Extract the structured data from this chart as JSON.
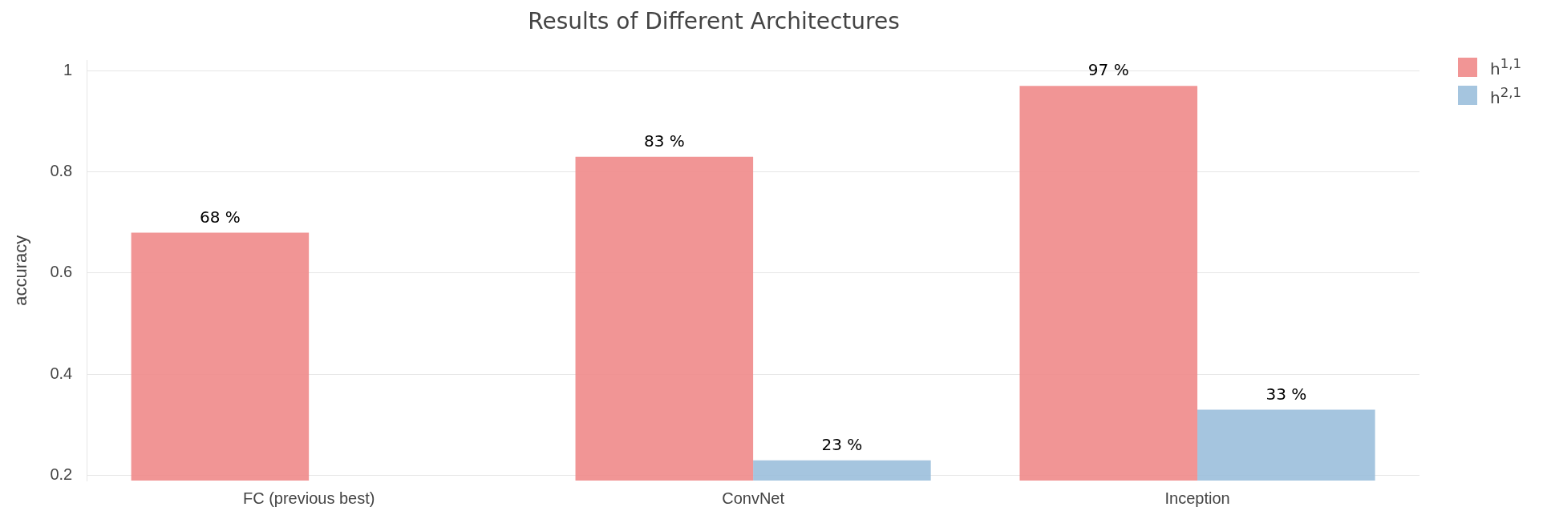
{
  "chart_data": {
    "type": "bar",
    "title": "Results of Different Architectures",
    "ylabel": "accuracy",
    "categories": [
      "FC (previous best)",
      "ConvNet",
      "Inception"
    ],
    "series": [
      {
        "name": "h$^{1,1}$",
        "color": "#f08a89",
        "values": [
          0.68,
          0.83,
          0.97
        ],
        "value_labels": [
          "68 %",
          "83 %",
          "97 %"
        ]
      },
      {
        "name": "h$^{2,1}$",
        "color": "#9bbfdc",
        "values": [
          null,
          0.23,
          0.33
        ],
        "value_labels": [
          null,
          "23 %",
          "33 %"
        ]
      }
    ],
    "ylim": [
      0.19,
      1.02
    ],
    "yticks": [
      0.2,
      0.4,
      0.6,
      0.8,
      1
    ],
    "grid": "y",
    "legend": "top right"
  }
}
